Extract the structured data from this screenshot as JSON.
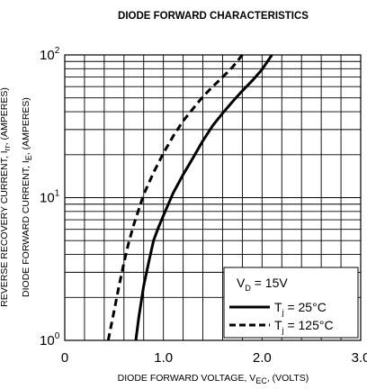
{
  "chart_data": {
    "type": "line",
    "title": "DIODE FORWARD CHARACTERISTICS",
    "xlabel": {
      "pre": "DIODE FORWARD VOLTAGE, V",
      "sub": "EC",
      "post": ", (VOLTS)"
    },
    "ylabel_outer": {
      "pre": "REVERSE RECOVERY CURRENT, I",
      "sub": "rr",
      "post": ", (AMPERES)"
    },
    "ylabel_inner": {
      "pre": "DIODE FORWARD CURRENT, I",
      "sub": "E",
      "post": ", (AMPERES)"
    },
    "xlim": [
      0,
      3.0
    ],
    "ylim": [
      1,
      100
    ],
    "yscale": "log",
    "x_ticks": [
      {
        "value": 0,
        "label": "0"
      },
      {
        "value": 1.0,
        "label": "1.0"
      },
      {
        "value": 2.0,
        "label": "2.0"
      },
      {
        "value": 3.0,
        "label": "3.0"
      }
    ],
    "y_ticks": [
      {
        "value": 1,
        "base": "10",
        "exp": "0"
      },
      {
        "value": 10,
        "base": "10",
        "exp": "1"
      },
      {
        "value": 100,
        "base": "10",
        "exp": "2"
      }
    ],
    "grid": true,
    "legend": {
      "position": "bottom-right",
      "header": {
        "pre": "V",
        "sub": "D",
        "post": " = 15V"
      }
    },
    "series": [
      {
        "name_pre": "T",
        "name_sub": "j",
        "name_post": " = 25°C",
        "style": "solid",
        "x": [
          0.72,
          0.75,
          0.8,
          0.85,
          0.9,
          0.95,
          1.0,
          1.1,
          1.2,
          1.3,
          1.4,
          1.5,
          1.6,
          1.7,
          1.8,
          1.9,
          2.0,
          2.1
        ],
        "y": [
          1.0,
          1.45,
          2.4,
          3.5,
          5.0,
          6.2,
          7.5,
          10.8,
          14.5,
          19.0,
          25.0,
          32.0,
          39.0,
          47.0,
          56.0,
          66.0,
          79.0,
          100.0
        ]
      },
      {
        "name_pre": "T",
        "name_sub": "j",
        "name_post": " = 125°C",
        "style": "dashed",
        "x": [
          0.44,
          0.5,
          0.55,
          0.6,
          0.65,
          0.7,
          0.8,
          0.9,
          1.0,
          1.1,
          1.2,
          1.3,
          1.4,
          1.5,
          1.6,
          1.7,
          1.8
        ],
        "y": [
          1.0,
          1.6,
          2.4,
          3.5,
          4.9,
          6.5,
          10.5,
          15.0,
          20.5,
          27.0,
          34.5,
          42.0,
          51.0,
          60.0,
          70.0,
          82.0,
          100.0
        ]
      }
    ]
  }
}
